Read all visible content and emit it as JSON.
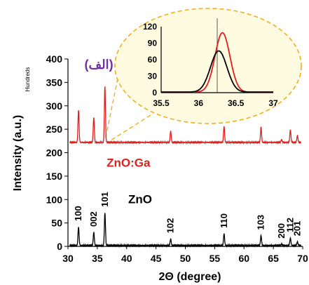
{
  "chart_data": [
    {
      "type": "line",
      "title": "",
      "panel_label": "(الف)",
      "xlabel": "2Θ (degree)",
      "ylabel": "Intensity (a.u.)",
      "y_unit_note": "Hundreds",
      "xlim": [
        30,
        70
      ],
      "ylim": [
        0,
        400
      ],
      "x_ticks": [
        "30",
        "35",
        "40",
        "45",
        "50",
        "55",
        "60",
        "65",
        "70"
      ],
      "y_ticks": [
        "0",
        "50",
        "100",
        "150",
        "200",
        "250",
        "300",
        "350",
        "400"
      ],
      "grid": false,
      "series": [
        {
          "name": "ZnO:Ga",
          "color": "#e02020",
          "baseline": 222,
          "peaks": [
            {
              "x": 31.8,
              "y": 292
            },
            {
              "x": 34.4,
              "y": 275
            },
            {
              "x": 36.3,
              "y": 342
            },
            {
              "x": 47.5,
              "y": 246
            },
            {
              "x": 56.6,
              "y": 256
            },
            {
              "x": 62.9,
              "y": 255
            },
            {
              "x": 66.4,
              "y": 228
            },
            {
              "x": 67.9,
              "y": 249
            },
            {
              "x": 69.1,
              "y": 237
            }
          ]
        },
        {
          "name": "ZnO",
          "color": "#000000",
          "baseline": 2,
          "peaks": [
            {
              "x": 31.8,
              "y": 42
            },
            {
              "x": 34.4,
              "y": 30
            },
            {
              "x": 36.3,
              "y": 72
            },
            {
              "x": 47.5,
              "y": 16
            },
            {
              "x": 56.6,
              "y": 27
            },
            {
              "x": 62.9,
              "y": 23
            },
            {
              "x": 66.4,
              "y": 5
            },
            {
              "x": 67.9,
              "y": 18
            },
            {
              "x": 69.1,
              "y": 10
            }
          ]
        }
      ],
      "peak_labels": [
        {
          "text": "100",
          "x": 31.8,
          "y": 42
        },
        {
          "text": "002",
          "x": 34.4,
          "y": 30
        },
        {
          "text": "101",
          "x": 36.3,
          "y": 72
        },
        {
          "text": "102",
          "x": 47.5,
          "y": 16
        },
        {
          "text": "110",
          "x": 56.6,
          "y": 27
        },
        {
          "text": "103",
          "x": 62.9,
          "y": 23
        },
        {
          "text": "200",
          "x": 66.4,
          "y": 5
        },
        {
          "text": "112",
          "x": 67.9,
          "y": 18
        },
        {
          "text": "201",
          "x": 69.1,
          "y": 10
        }
      ],
      "series_labels": [
        {
          "text": "ZnO:Ga",
          "color": "#e02020"
        },
        {
          "text": "ZnO",
          "color": "#000000"
        }
      ]
    },
    {
      "type": "line",
      "title": "",
      "xlim": [
        35.5,
        37
      ],
      "ylim": [
        0,
        120
      ],
      "x_ticks": [
        "35.5",
        "36",
        "36.5",
        "37"
      ],
      "y_ticks": [
        "0",
        "30",
        "60",
        "90",
        "120"
      ],
      "reference_line_x": 36.25,
      "series": [
        {
          "name": "ZnO:Ga",
          "color": "#e02020",
          "peak": {
            "x": 36.32,
            "y": 108,
            "sigma": 0.1
          }
        },
        {
          "name": "ZnO",
          "color": "#000000",
          "peak": {
            "x": 36.27,
            "y": 75,
            "sigma": 0.11
          }
        }
      ]
    }
  ],
  "colors": {
    "callout_border": "#f0b020",
    "callout_fill": "#fffbe0",
    "panel_label": "#7030a0"
  }
}
